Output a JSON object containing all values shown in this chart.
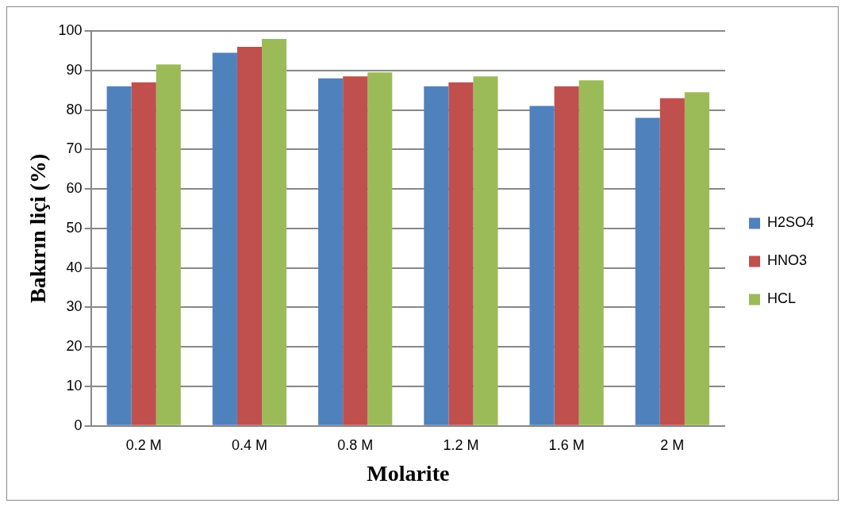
{
  "chart_data": {
    "type": "bar",
    "xlabel": "Molarite",
    "ylabel": "Bakırın liçi (%)",
    "categories": [
      "0.2 M",
      "0.4 M",
      "0.8 M",
      "1.2 M",
      "1.6 M",
      "2 M"
    ],
    "series": [
      {
        "name": "H2SO4",
        "color": "#4f81bd",
        "values": [
          86,
          94.5,
          88,
          86,
          81,
          78
        ]
      },
      {
        "name": "HNO3",
        "color": "#c0504d",
        "values": [
          87,
          96,
          88.5,
          87,
          86,
          83
        ]
      },
      {
        "name": "HCL",
        "color": "#9bbb59",
        "values": [
          91.5,
          98,
          89.5,
          88.5,
          87.5,
          84.5
        ]
      }
    ],
    "ylim": [
      0,
      100
    ],
    "yticks": [
      0,
      10,
      20,
      30,
      40,
      50,
      60,
      70,
      80,
      90,
      100
    ],
    "grid": "y",
    "legend": "right"
  }
}
